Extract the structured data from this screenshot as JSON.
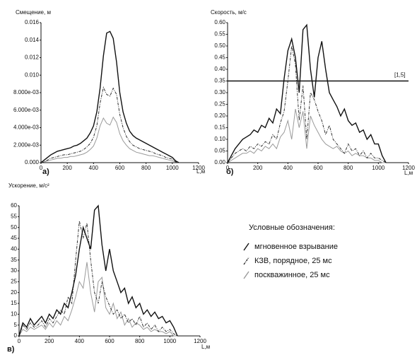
{
  "chart_data": [
    {
      "type": "line",
      "title": "Смещение, м",
      "panel": "а)",
      "xlabel": "L,м",
      "xlim": [
        0,
        1200
      ],
      "xticks": [
        0,
        200,
        400,
        600,
        800,
        1000,
        1200
      ],
      "ylim": [
        0,
        0.016
      ],
      "yticks": [
        {
          "value": 0,
          "label": "0.000"
        },
        {
          "value": 0.002,
          "label": "2.000e-03"
        },
        {
          "value": 0.004,
          "label": "4.000e-03"
        },
        {
          "value": 0.006,
          "label": "6.000e-03"
        },
        {
          "value": 0.008,
          "label": "8.000e-03"
        },
        {
          "value": 0.01,
          "label": "0.010"
        },
        {
          "value": 0.012,
          "label": "0.012"
        },
        {
          "value": 0.014,
          "label": "0.014"
        },
        {
          "value": 0.016,
          "label": "0.016"
        }
      ],
      "x": [
        0,
        25,
        50,
        75,
        100,
        125,
        150,
        175,
        200,
        225,
        250,
        275,
        300,
        325,
        350,
        375,
        400,
        425,
        450,
        475,
        500,
        525,
        550,
        575,
        600,
        625,
        650,
        675,
        700,
        725,
        750,
        775,
        800,
        825,
        850,
        875,
        900,
        925,
        950,
        975,
        1000,
        1025,
        1050
      ],
      "series": [
        {
          "name": "мгновенное взрывание",
          "color": "#111111",
          "values": [
            0,
            0.0003,
            0.0006,
            0.0009,
            0.0011,
            0.0013,
            0.0014,
            0.0015,
            0.0016,
            0.0017,
            0.0019,
            0.002,
            0.0022,
            0.0025,
            0.0028,
            0.0034,
            0.0042,
            0.0058,
            0.0085,
            0.0122,
            0.0148,
            0.015,
            0.0142,
            0.0115,
            0.008,
            0.0058,
            0.0045,
            0.0036,
            0.0031,
            0.0028,
            0.0026,
            0.0024,
            0.0022,
            0.002,
            0.0018,
            0.0016,
            0.0014,
            0.0012,
            0.001,
            0.0008,
            0.0006,
            0.0002,
            0
          ]
        },
        {
          "name": "КЗВ, порядное, 25 мс",
          "color": "#333333",
          "dash": "4 1.5 1 1.5",
          "values": [
            0,
            0.0001,
            0.0003,
            0.0005,
            0.0006,
            0.0007,
            0.0008,
            0.0009,
            0.0009,
            0.001,
            0.0011,
            0.0012,
            0.0013,
            0.0015,
            0.0018,
            0.0022,
            0.0029,
            0.0042,
            0.0068,
            0.0086,
            0.0078,
            0.0076,
            0.0085,
            0.0078,
            0.0055,
            0.004,
            0.003,
            0.0024,
            0.002,
            0.0018,
            0.0016,
            0.0015,
            0.0014,
            0.0013,
            0.0012,
            0.001,
            0.0009,
            0.0008,
            0.0006,
            0.0005,
            0.0004,
            0.0001,
            0
          ]
        },
        {
          "name": "поскважинное, 25 мс",
          "color": "#9a9a9a",
          "values": [
            0,
            0.0001,
            0.0002,
            0.0003,
            0.0004,
            0.0005,
            0.0005,
            0.0006,
            0.0006,
            0.0007,
            0.0007,
            0.0008,
            0.0009,
            0.001,
            0.0012,
            0.0015,
            0.0019,
            0.0028,
            0.0042,
            0.0051,
            0.0045,
            0.0043,
            0.0052,
            0.0046,
            0.0033,
            0.0025,
            0.002,
            0.0016,
            0.0014,
            0.0012,
            0.0011,
            0.001,
            0.0009,
            0.0008,
            0.0008,
            0.0007,
            0.0006,
            0.0005,
            0.0004,
            0.0003,
            0.0002,
            0.0001,
            0
          ]
        }
      ]
    },
    {
      "type": "line",
      "title": "Скорость, м/с",
      "panel": "б)",
      "xlabel": "L,м",
      "xlim": [
        0,
        1200
      ],
      "xticks": [
        0,
        200,
        400,
        600,
        800,
        1000,
        1200
      ],
      "ylim": [
        0,
        0.6
      ],
      "yticks": [
        {
          "value": 0,
          "label": "0.00"
        },
        0.05,
        {
          "value": 0.1,
          "label": "0.10"
        },
        0.15,
        {
          "value": 0.2,
          "label": "0.20"
        },
        0.25,
        {
          "value": 0.3,
          "label": "0.30"
        },
        0.35,
        {
          "value": 0.4,
          "label": "0.40"
        },
        0.45,
        {
          "value": 0.5,
          "label": "0.50"
        },
        0.55,
        {
          "value": 0.6,
          "label": "0.60"
        }
      ],
      "hline": {
        "value": 0.35,
        "label": "[1,5]"
      },
      "x": [
        0,
        25,
        50,
        75,
        100,
        125,
        150,
        175,
        200,
        225,
        250,
        275,
        300,
        325,
        350,
        375,
        400,
        425,
        450,
        475,
        500,
        525,
        550,
        575,
        600,
        625,
        650,
        675,
        700,
        725,
        750,
        775,
        800,
        825,
        850,
        875,
        900,
        925,
        950,
        975,
        1000,
        1025,
        1050
      ],
      "series": [
        {
          "color": "#111111",
          "values": [
            0,
            0.03,
            0.06,
            0.08,
            0.1,
            0.11,
            0.12,
            0.14,
            0.13,
            0.16,
            0.15,
            0.19,
            0.17,
            0.23,
            0.21,
            0.36,
            0.48,
            0.53,
            0.45,
            0.3,
            0.57,
            0.59,
            0.4,
            0.28,
            0.45,
            0.52,
            0.4,
            0.3,
            0.27,
            0.24,
            0.2,
            0.23,
            0.18,
            0.16,
            0.17,
            0.13,
            0.14,
            0.1,
            0.12,
            0.08,
            0.08,
            0.03,
            0
          ]
        },
        {
          "color": "#333333",
          "dash": "4 1.5 1 1.5",
          "values": [
            0,
            0.02,
            0.04,
            0.05,
            0.06,
            0.05,
            0.07,
            0.06,
            0.08,
            0.07,
            0.09,
            0.08,
            0.12,
            0.1,
            0.17,
            0.22,
            0.35,
            0.5,
            0.42,
            0.18,
            0.33,
            0.1,
            0.3,
            0.27,
            0.22,
            0.18,
            0.12,
            0.16,
            0.1,
            0.08,
            0.06,
            0.04,
            0.08,
            0.05,
            0.06,
            0.03,
            0.05,
            0.02,
            0.04,
            0.02,
            0.02,
            0.01,
            0
          ]
        },
        {
          "color": "#9a9a9a",
          "values": [
            0,
            0.01,
            0.02,
            0.03,
            0.04,
            0.04,
            0.05,
            0.04,
            0.06,
            0.05,
            0.07,
            0.06,
            0.08,
            0.06,
            0.11,
            0.13,
            0.18,
            0.1,
            0.23,
            0.15,
            0.22,
            0.06,
            0.2,
            0.16,
            0.13,
            0.1,
            0.08,
            0.07,
            0.06,
            0.07,
            0.05,
            0.04,
            0.05,
            0.03,
            0.04,
            0.03,
            0.03,
            0.02,
            0.02,
            0.01,
            0.01,
            0,
            0
          ]
        }
      ]
    },
    {
      "type": "line",
      "title": "Ускорение, м/с²",
      "panel": "в)",
      "xlabel": "L,м",
      "xlim": [
        0,
        1200
      ],
      "xticks": [
        0,
        200,
        400,
        600,
        800,
        1000,
        1200
      ],
      "ylim": [
        0,
        60
      ],
      "yticks": [
        0,
        5,
        10,
        15,
        20,
        25,
        30,
        35,
        40,
        45,
        50,
        55,
        60
      ],
      "x": [
        0,
        25,
        50,
        75,
        100,
        125,
        150,
        175,
        200,
        225,
        250,
        275,
        300,
        325,
        350,
        375,
        400,
        425,
        450,
        475,
        500,
        525,
        550,
        575,
        600,
        625,
        650,
        675,
        700,
        725,
        750,
        775,
        800,
        825,
        850,
        875,
        900,
        925,
        950,
        975,
        1000,
        1025,
        1050
      ],
      "series": [
        {
          "color": "#111111",
          "values": [
            0,
            6,
            4,
            8,
            5,
            7,
            9,
            6,
            10,
            8,
            12,
            10,
            15,
            13,
            20,
            28,
            40,
            50,
            45,
            40,
            58,
            60,
            42,
            30,
            40,
            30,
            25,
            20,
            22,
            15,
            18,
            13,
            15,
            10,
            12,
            9,
            11,
            8,
            9,
            6,
            7,
            4,
            0
          ]
        },
        {
          "color": "#333333",
          "dash": "4 1.5 1 1.5",
          "values": [
            0,
            5,
            3,
            6,
            4,
            5,
            7,
            4,
            8,
            6,
            9,
            12,
            10,
            18,
            15,
            35,
            53,
            45,
            52,
            35,
            20,
            15,
            25,
            18,
            14,
            10,
            12,
            8,
            10,
            6,
            8,
            5,
            9,
            4,
            6,
            3,
            5,
            2,
            4,
            2,
            3,
            1,
            0
          ]
        },
        {
          "color": "#9a9a9a",
          "values": [
            0,
            3,
            2,
            4,
            3,
            4,
            5,
            3,
            6,
            4,
            7,
            5,
            9,
            7,
            12,
            18,
            25,
            22,
            34,
            20,
            11,
            25,
            27,
            13,
            10,
            15,
            8,
            11,
            5,
            8,
            4,
            6,
            5,
            3,
            4,
            2,
            3,
            2,
            2,
            1,
            2,
            0,
            0
          ]
        }
      ]
    }
  ],
  "legend": {
    "title": "Условные обозначения:"
  }
}
